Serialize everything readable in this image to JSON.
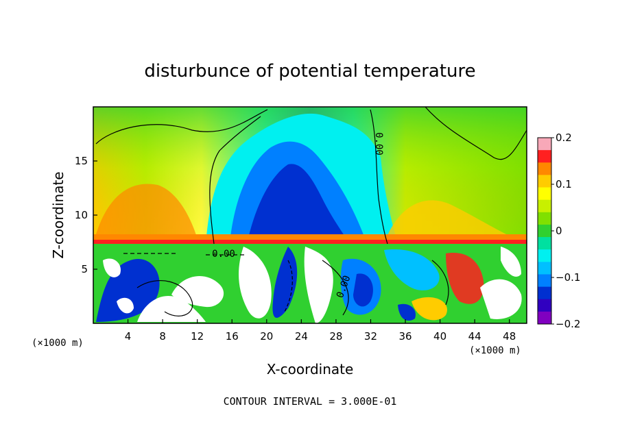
{
  "chart_data": {
    "type": "heatmap",
    "title": "disturbunce of potential temperature",
    "xlabel": "X-coordinate",
    "ylabel": "Z-coordinate",
    "x_unit": "(×1000 m)",
    "xlim": [
      0,
      50
    ],
    "ylim": [
      0,
      20
    ],
    "x_ticks": [
      4,
      8,
      12,
      16,
      20,
      24,
      28,
      32,
      36,
      40,
      44,
      48
    ],
    "y_ticks": [
      5,
      10,
      15
    ],
    "colorbar": {
      "min": -0.2,
      "max": 0.2,
      "ticks": [
        "0.2",
        "0.1",
        "0",
        "−0.1",
        "−0.2"
      ],
      "colors": [
        "#f8a8b8",
        "#ff2020",
        "#ff8800",
        "#ffcc00",
        "#ffff00",
        "#c8f000",
        "#80e000",
        "#30d030",
        "#00e0a0",
        "#00f0f0",
        "#00c0ff",
        "#0080ff",
        "#0030d0",
        "#3000c0",
        "#8000c0"
      ]
    },
    "contour_label": "0.00",
    "footer": "CONTOUR INTERVAL = 3.000E-01"
  }
}
